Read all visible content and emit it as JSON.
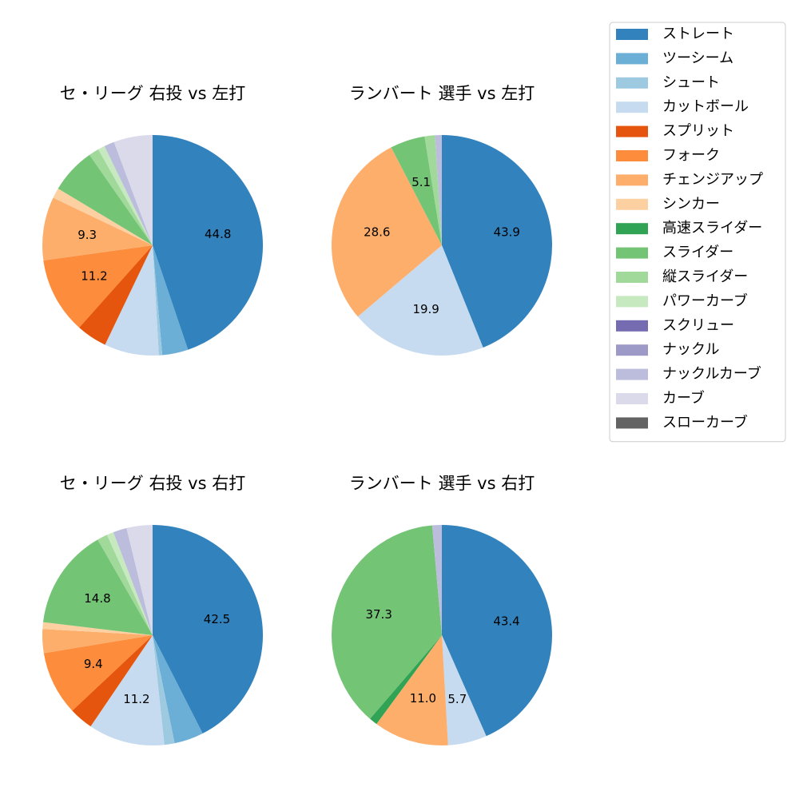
{
  "categories": [
    "ストレート",
    "ツーシーム",
    "シュート",
    "カットボール",
    "スプリット",
    "フォーク",
    "チェンジアップ",
    "シンカー",
    "高速スライダー",
    "スライダー",
    "縦スライダー",
    "パワーカーブ",
    "スクリュー",
    "ナックル",
    "ナックルカーブ",
    "カーブ",
    "スローカーブ"
  ],
  "colors": [
    "#3182bd",
    "#6baed6",
    "#9ecae1",
    "#c6dbef",
    "#e6550d",
    "#fd8d3c",
    "#fdae6b",
    "#fdd0a2",
    "#31a354",
    "#74c476",
    "#a1d99b",
    "#c7e9c0",
    "#756bb1",
    "#9e9ac8",
    "#bcbddc",
    "#dadaeb",
    "#636363"
  ],
  "legend": "upper right",
  "chart_data": [
    {
      "type": "pie",
      "title": "セ・リーグ 右投 vs 左打",
      "values": [
        44.8,
        3.8,
        0.5,
        8.0,
        4.5,
        11.2,
        9.3,
        1.5,
        0,
        6.7,
        1.5,
        1.0,
        0,
        0,
        1.5,
        5.7,
        0
      ],
      "value_labels": [
        "44.8",
        null,
        null,
        null,
        null,
        "11.2",
        "9.3",
        null,
        null,
        null,
        null,
        null,
        null,
        null,
        null,
        null,
        null
      ]
    },
    {
      "type": "pie",
      "title": "ランバート 選手 vs 左打",
      "values": [
        43.9,
        0,
        0,
        19.9,
        0,
        0,
        28.6,
        0,
        0,
        5.1,
        1.5,
        0,
        0,
        0,
        1.0,
        0,
        0
      ],
      "value_labels": [
        "43.9",
        null,
        null,
        "19.9",
        null,
        null,
        "28.6",
        null,
        null,
        "5.1",
        null,
        null,
        null,
        null,
        null,
        null,
        null
      ]
    },
    {
      "type": "pie",
      "title": "セ・リーグ 右投 vs 右打",
      "values": [
        42.5,
        4.3,
        1.5,
        11.2,
        3.5,
        9.4,
        3.5,
        1.0,
        0,
        14.8,
        1.5,
        1.0,
        0,
        0,
        2.0,
        3.8,
        0
      ],
      "value_labels": [
        "42.5",
        null,
        null,
        "11.2",
        null,
        "9.4",
        null,
        null,
        null,
        "14.8",
        null,
        null,
        null,
        null,
        null,
        null,
        null
      ]
    },
    {
      "type": "pie",
      "title": "ランバート 選手 vs 右打",
      "values": [
        43.4,
        0,
        0,
        5.7,
        0,
        0,
        11.0,
        0,
        1.2,
        37.3,
        0,
        0,
        0,
        0,
        1.4,
        0,
        0
      ],
      "value_labels": [
        "43.4",
        null,
        null,
        "5.7",
        null,
        null,
        "11.0",
        null,
        null,
        "37.3",
        null,
        null,
        null,
        null,
        null,
        null,
        null
      ]
    }
  ]
}
